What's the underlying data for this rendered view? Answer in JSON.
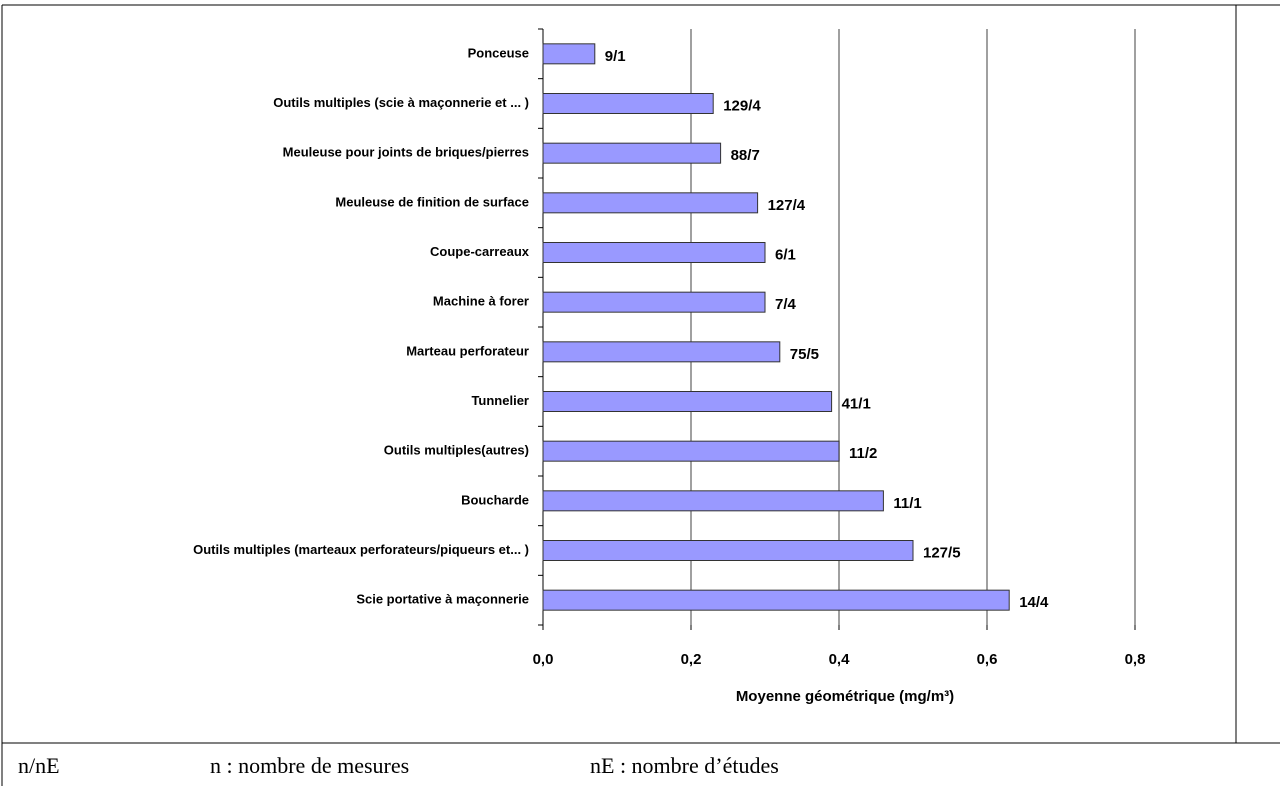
{
  "chart_data": {
    "type": "bar",
    "orientation": "horizontal",
    "categories": [
      "Ponceuse",
      "Outils multiples (scie à maçonnerie et ... )",
      "Meuleuse pour joints de briques/pierres",
      "Meuleuse de finition de surface",
      "Coupe-carreaux",
      "Machine à forer",
      "Marteau perforateur",
      "Tunnelier",
      "Outils multiples(autres)",
      "Boucharde",
      "Outils multiples (marteaux perforateurs/piqueurs et... )",
      "Scie portative à maçonnerie"
    ],
    "values": [
      0.07,
      0.23,
      0.24,
      0.29,
      0.3,
      0.3,
      0.32,
      0.39,
      0.4,
      0.46,
      0.5,
      0.63
    ],
    "value_labels": [
      "9/1",
      "129/4",
      "88/7",
      "127/4",
      "6/1",
      "7/4",
      "75/5",
      "41/1",
      "11/2",
      "11/1",
      "127/5",
      "14/4"
    ],
    "color": "#9999ff",
    "xlabel": "Moyenne géométrique (mg/m³)",
    "xlim": [
      0,
      0.8
    ],
    "xticks": [
      {
        "value": 0,
        "label": "0,0"
      },
      {
        "value": 0.2,
        "label": "0,2"
      },
      {
        "value": 0.4,
        "label": "0,4"
      },
      {
        "value": 0.6,
        "label": "0,6"
      },
      {
        "value": 0.8,
        "label": "0,8"
      }
    ],
    "grid": true
  },
  "footer": [
    "n/nE",
    "n : nombre de mesures",
    "nE : nombre d’études"
  ]
}
